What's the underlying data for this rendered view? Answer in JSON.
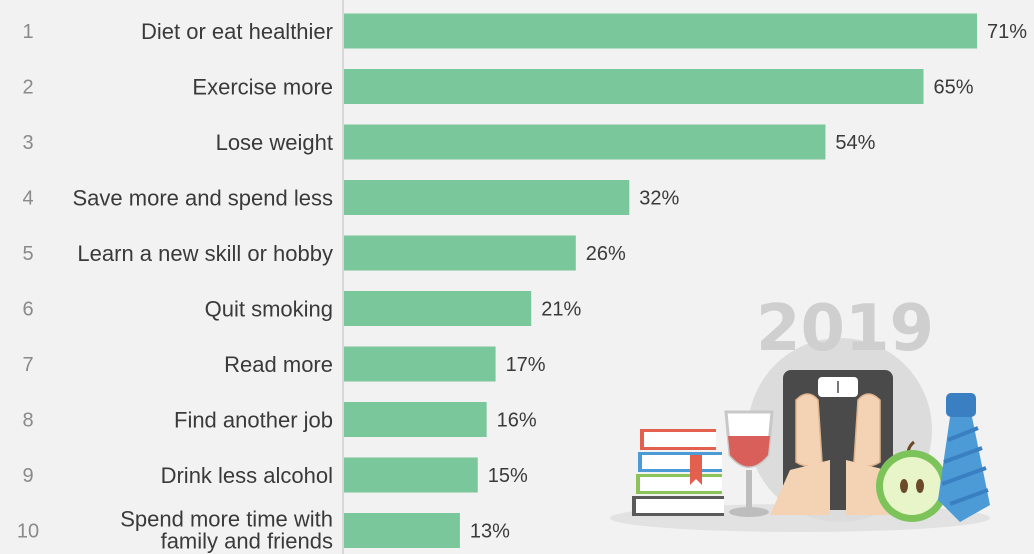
{
  "chart_data": {
    "type": "bar",
    "orientation": "horizontal",
    "categories": [
      "Diet or eat healthier",
      "Exercise more",
      "Lose weight",
      "Save more and spend less",
      "Learn a new skill or hobby",
      "Quit smoking",
      "Read more",
      "Find another job",
      "Drink less alcohol",
      "Spend more time with family and friends"
    ],
    "category_lines": [
      [
        "Diet or eat healthier"
      ],
      [
        "Exercise more"
      ],
      [
        "Lose weight"
      ],
      [
        "Save more and spend less"
      ],
      [
        "Learn a new skill or hobby"
      ],
      [
        "Quit smoking"
      ],
      [
        "Read more"
      ],
      [
        "Find another job"
      ],
      [
        "Drink less alcohol"
      ],
      [
        "Spend more time with",
        "family and friends"
      ]
    ],
    "ranks": [
      "1",
      "2",
      "3",
      "4",
      "5",
      "6",
      "7",
      "8",
      "9",
      "10"
    ],
    "values": [
      71,
      65,
      54,
      32,
      26,
      21,
      17,
      16,
      15,
      13
    ],
    "value_labels": [
      "71%",
      "65%",
      "54%",
      "32%",
      "26%",
      "21%",
      "17%",
      "16%",
      "15%",
      "13%"
    ],
    "xlim": [
      0,
      71
    ],
    "grid": false,
    "colors": {
      "bar": "#79c79a",
      "background": "#f2f2f2"
    }
  },
  "illustration": {
    "year_text": "2019",
    "icon_names": [
      "books-icon",
      "wine-glass-icon",
      "scale-icon",
      "apple-icon",
      "tie-icon"
    ]
  }
}
